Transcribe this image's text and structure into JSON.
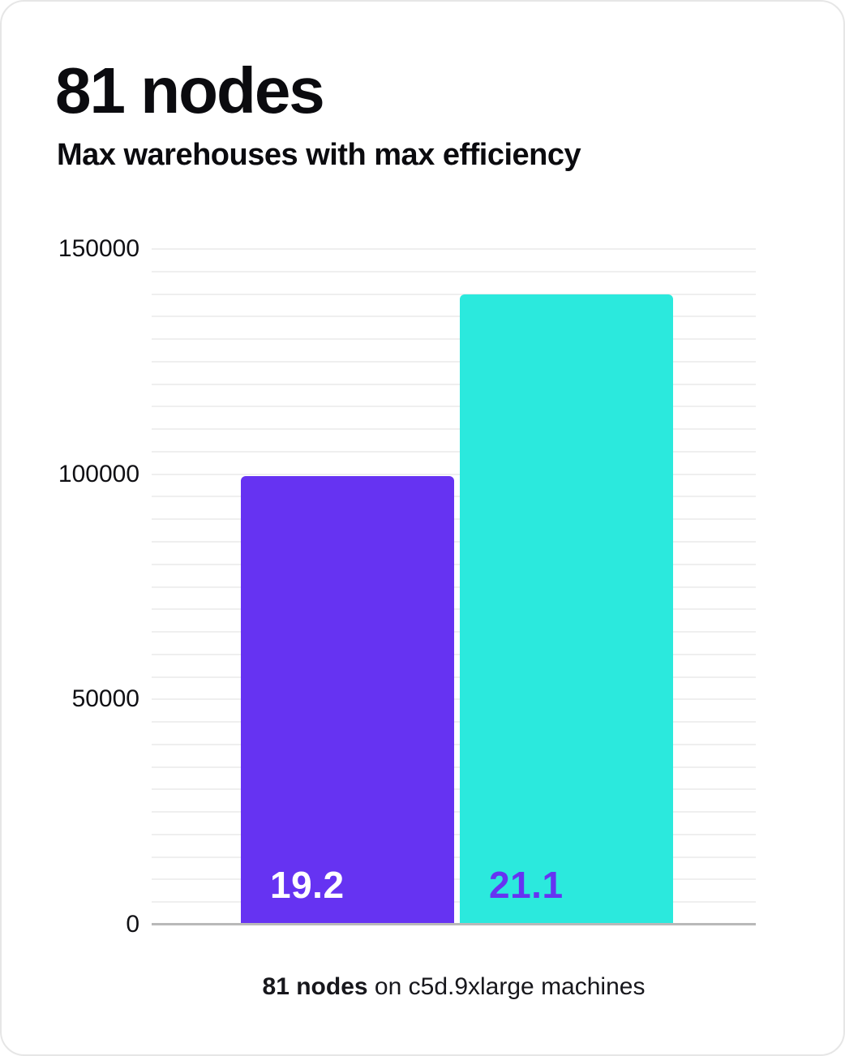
{
  "header": {
    "title": "81 nodes",
    "subtitle": "Max warehouses with max efficiency"
  },
  "chart_data": {
    "type": "bar",
    "title": "81 nodes",
    "subtitle": "Max warehouses with max efficiency",
    "categories": [
      "19.2",
      "21.1"
    ],
    "values": [
      99500,
      140000
    ],
    "bar_labels": [
      "19.2",
      "21.1"
    ],
    "bar_colors": [
      "#6633f2",
      "#2be9dd"
    ],
    "bar_label_colors": [
      "#ffffff",
      "#6633f2"
    ],
    "xlabel": "",
    "ylabel": "",
    "ylim": [
      0,
      150000
    ],
    "yticks": [
      0,
      50000,
      100000,
      150000
    ],
    "ytick_labels": [
      "0",
      "50000",
      "100000",
      "150000"
    ],
    "grid_step": 5000,
    "grid": "horizontal-minor-lines",
    "legend": "none"
  },
  "caption": {
    "bold": "81 nodes",
    "rest": " on c5d.9xlarge machines"
  },
  "colors": {
    "bar_purple": "#6633f2",
    "bar_cyan": "#2be9dd",
    "gridline": "#efefef",
    "axis_baseline": "#b9b9b9",
    "text": "#0b0b0f"
  }
}
